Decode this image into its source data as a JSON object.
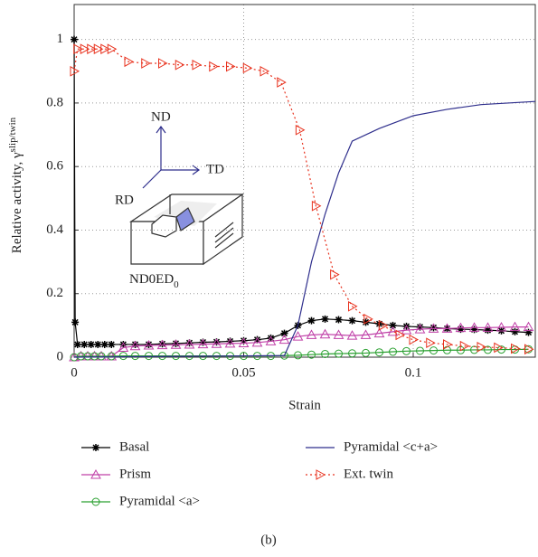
{
  "chart_data": {
    "type": "line",
    "x_label": "Strain",
    "y_label": {
      "text": "Relative activity, γ",
      "sup": "slip/twin"
    },
    "xlim": [
      0,
      0.136
    ],
    "ylim": [
      0,
      1.11
    ],
    "xticks": [
      0,
      0.05,
      0.1
    ],
    "yticks": [
      0,
      0.2,
      0.4,
      0.6,
      0.8,
      1
    ],
    "grid": true,
    "series": [
      {
        "name": "Basal",
        "color": "#000000",
        "marker": "asterisk",
        "dash": "solid",
        "x": [
          0,
          0.0003,
          0.001,
          0.003,
          0.005,
          0.007,
          0.009,
          0.011,
          0.0145,
          0.018,
          0.022,
          0.026,
          0.03,
          0.034,
          0.038,
          0.042,
          0.046,
          0.05,
          0.054,
          0.058,
          0.062,
          0.066,
          0.07,
          0.074,
          0.078,
          0.082,
          0.086,
          0.09,
          0.094,
          0.098,
          0.102,
          0.106,
          0.11,
          0.114,
          0.118,
          0.122,
          0.126,
          0.13,
          0.134
        ],
        "values": [
          1,
          0.11,
          0.04,
          0.04,
          0.04,
          0.04,
          0.04,
          0.04,
          0.04,
          0.04,
          0.04,
          0.042,
          0.043,
          0.045,
          0.047,
          0.048,
          0.05,
          0.052,
          0.055,
          0.06,
          0.075,
          0.1,
          0.115,
          0.12,
          0.118,
          0.115,
          0.11,
          0.105,
          0.1,
          0.097,
          0.095,
          0.093,
          0.09,
          0.088,
          0.087,
          0.085,
          0.083,
          0.08,
          0.078
        ]
      },
      {
        "name": "Prism",
        "color": "#c040a8",
        "marker": "triangle",
        "dash": "solid",
        "x": [
          0,
          0.002,
          0.004,
          0.006,
          0.008,
          0.011,
          0.0145,
          0.018,
          0.022,
          0.026,
          0.03,
          0.034,
          0.038,
          0.042,
          0.046,
          0.05,
          0.054,
          0.058,
          0.062,
          0.066,
          0.07,
          0.074,
          0.078,
          0.082,
          0.086,
          0.09,
          0.094,
          0.098,
          0.102,
          0.106,
          0.11,
          0.114,
          0.118,
          0.122,
          0.126,
          0.13,
          0.134
        ],
        "values": [
          0,
          0.003,
          0.003,
          0.003,
          0.003,
          0.003,
          0.03,
          0.035,
          0.037,
          0.038,
          0.039,
          0.04,
          0.041,
          0.042,
          0.043,
          0.044,
          0.046,
          0.05,
          0.055,
          0.065,
          0.07,
          0.072,
          0.07,
          0.068,
          0.07,
          0.075,
          0.08,
          0.085,
          0.088,
          0.09,
          0.09,
          0.092,
          0.093,
          0.093,
          0.094,
          0.095,
          0.095
        ]
      },
      {
        "name": "Pyramidal <a>",
        "color": "#2aa030",
        "marker": "circle",
        "dash": "solid",
        "x": [
          0,
          0.002,
          0.004,
          0.006,
          0.008,
          0.011,
          0.0145,
          0.018,
          0.022,
          0.026,
          0.03,
          0.034,
          0.038,
          0.042,
          0.046,
          0.05,
          0.054,
          0.058,
          0.062,
          0.066,
          0.07,
          0.074,
          0.078,
          0.082,
          0.086,
          0.09,
          0.094,
          0.098,
          0.102,
          0.106,
          0.11,
          0.114,
          0.118,
          0.122,
          0.126,
          0.13,
          0.134
        ],
        "values": [
          0,
          0.003,
          0.003,
          0.003,
          0.003,
          0.003,
          0.004,
          0.004,
          0.004,
          0.004,
          0.004,
          0.004,
          0.004,
          0.004,
          0.004,
          0.004,
          0.004,
          0.004,
          0.005,
          0.006,
          0.008,
          0.01,
          0.011,
          0.012,
          0.013,
          0.015,
          0.017,
          0.019,
          0.02,
          0.021,
          0.022,
          0.022,
          0.023,
          0.023,
          0.024,
          0.024,
          0.025
        ]
      },
      {
        "name": "Pyramidal <c+a>",
        "color": "#2e2e8c",
        "marker": "none",
        "dash": "solid",
        "x": [
          0,
          0.062,
          0.066,
          0.07,
          0.074,
          0.078,
          0.082,
          0.09,
          0.1,
          0.11,
          0.12,
          0.136
        ],
        "values": [
          0,
          0.005,
          0.1,
          0.3,
          0.45,
          0.58,
          0.68,
          0.72,
          0.76,
          0.78,
          0.795,
          0.805
        ]
      },
      {
        "name": "Ext. twin",
        "color": "#e8321e",
        "marker": "triangle-right",
        "dash": "dotted",
        "x": [
          0,
          0.001,
          0.003,
          0.005,
          0.007,
          0.009,
          0.011,
          0.016,
          0.021,
          0.026,
          0.031,
          0.036,
          0.041,
          0.046,
          0.051,
          0.056,
          0.061,
          0.0665,
          0.0713,
          0.0767,
          0.082,
          0.0866,
          0.091,
          0.096,
          0.1,
          0.105,
          0.11,
          0.115,
          0.12,
          0.125,
          0.13,
          0.134
        ],
        "values": [
          0.9,
          0.97,
          0.97,
          0.97,
          0.97,
          0.97,
          0.97,
          0.93,
          0.925,
          0.925,
          0.92,
          0.92,
          0.915,
          0.915,
          0.91,
          0.9,
          0.865,
          0.715,
          0.476,
          0.26,
          0.16,
          0.12,
          0.1,
          0.07,
          0.055,
          0.045,
          0.04,
          0.035,
          0.032,
          0.03,
          0.027,
          0.025
        ]
      }
    ],
    "annotations": {
      "nd": "ND",
      "td": "TD",
      "rd": "RD",
      "orientation": "ND0ED",
      "orientation_sub": "0"
    },
    "caption": "(b)"
  }
}
